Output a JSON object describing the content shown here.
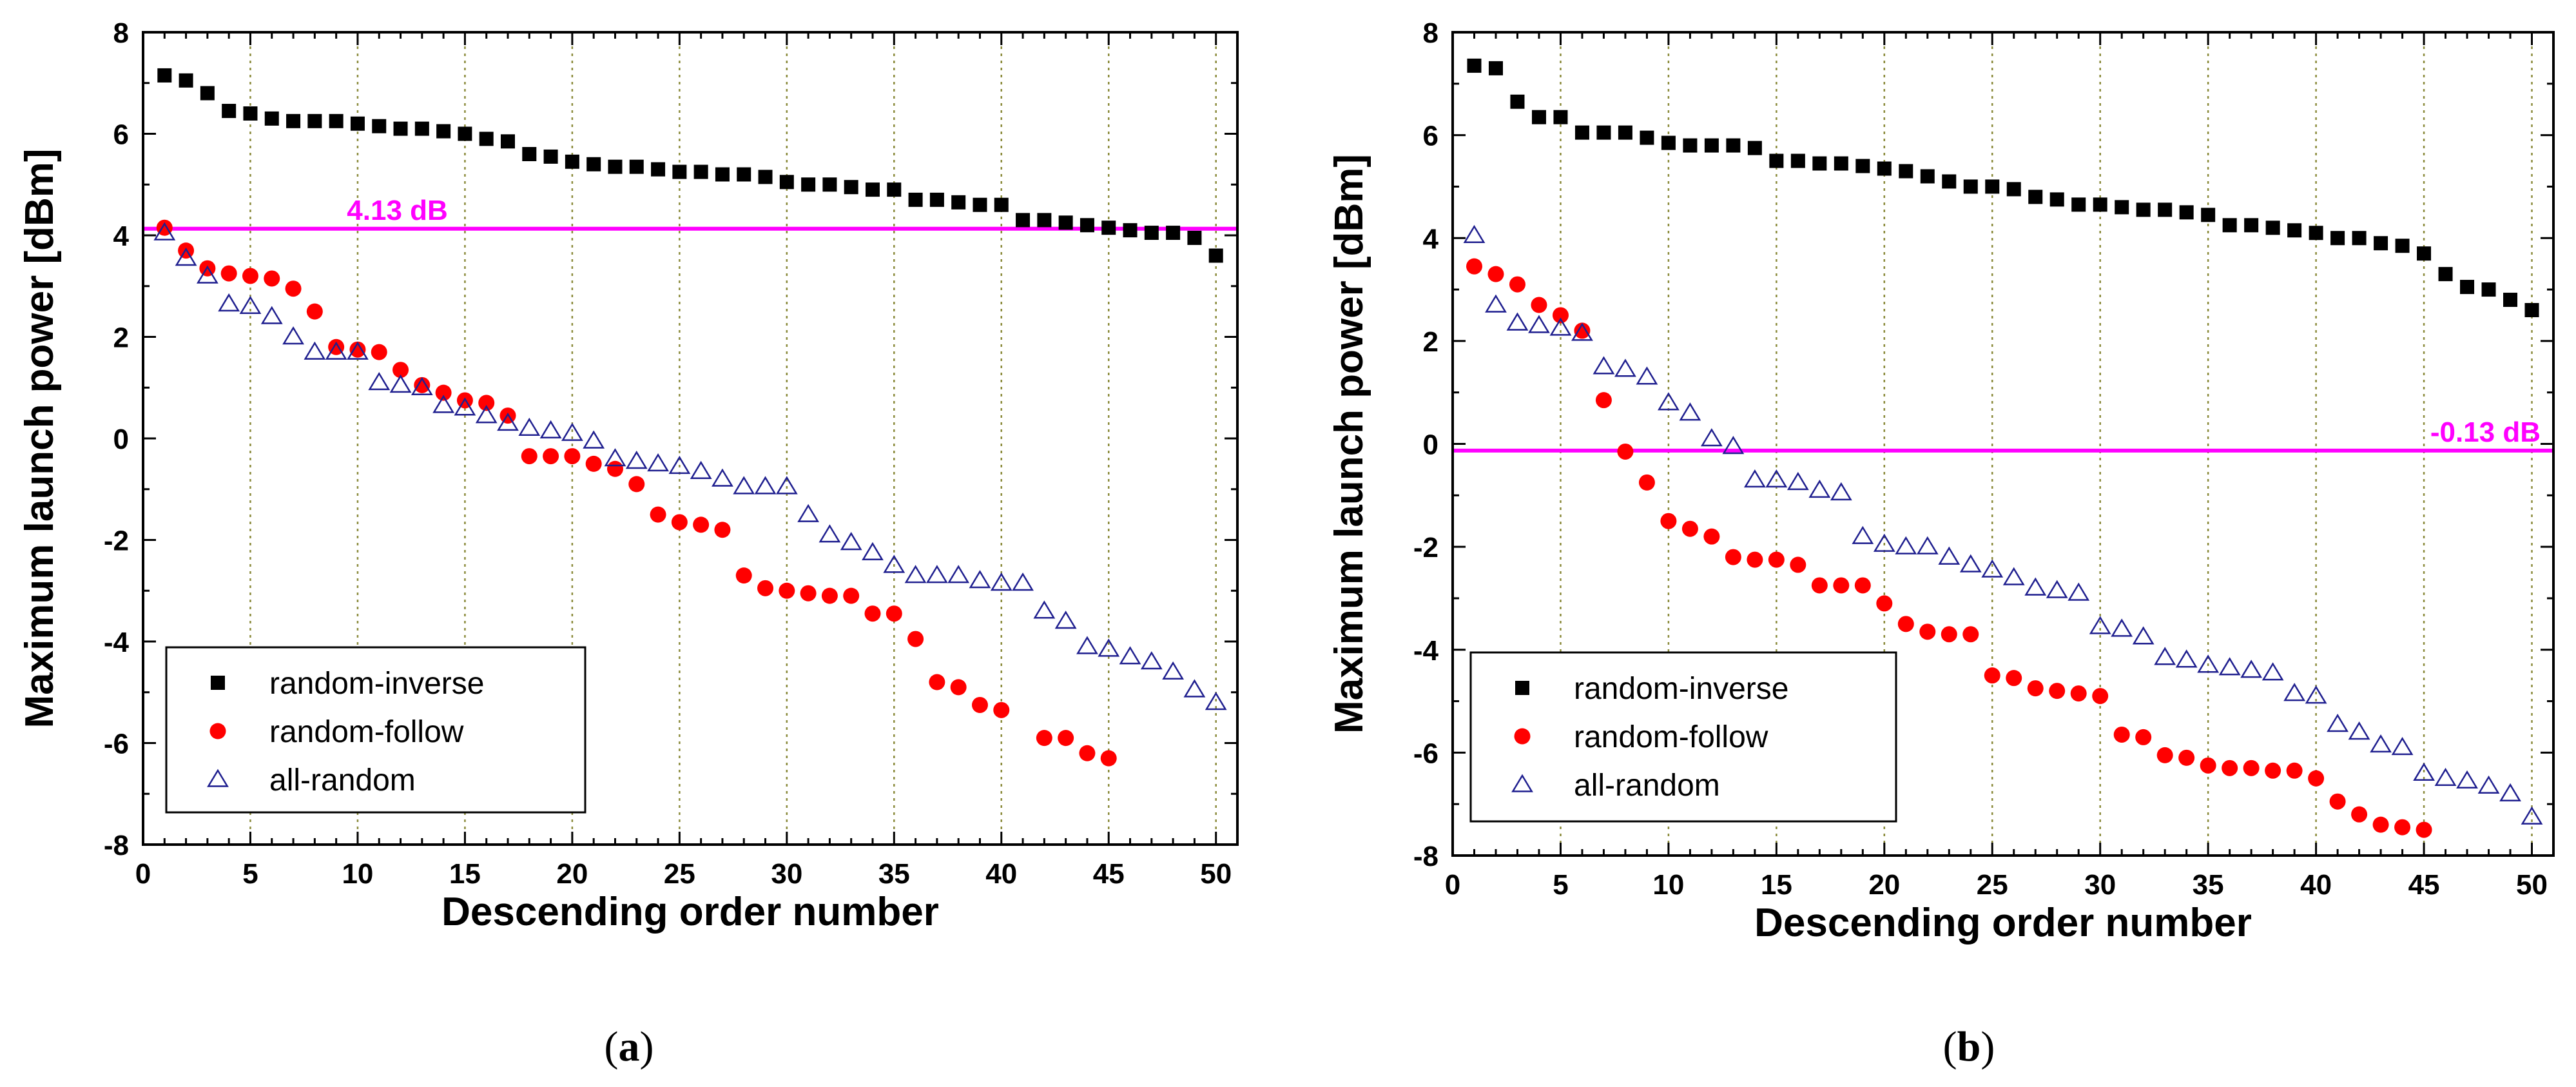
{
  "chart_data": [
    {
      "type": "scatter",
      "id": "a",
      "caption": "(a)",
      "caption_letter": "a",
      "xlabel": "Descending order number",
      "ylabel": "Maximum launch power [dBm]",
      "xlim": [
        0,
        51
      ],
      "ylim": [
        -8,
        8
      ],
      "xticks": [
        0,
        5,
        10,
        15,
        20,
        25,
        30,
        35,
        40,
        45,
        50
      ],
      "yticks": [
        -8,
        -6,
        -4,
        -2,
        0,
        2,
        4,
        6,
        8
      ],
      "grid": "vertical dotted at each x tick",
      "legend_position": "bottom-left",
      "reference_line": {
        "y": 4.13,
        "label": "4.13 dB",
        "color": "#ff00ff"
      },
      "series": [
        {
          "name": "random-inverse",
          "marker": "square",
          "color": "#000000",
          "values": [
            7.15,
            7.05,
            6.8,
            6.45,
            6.4,
            6.3,
            6.25,
            6.25,
            6.25,
            6.2,
            6.15,
            6.1,
            6.1,
            6.05,
            6.0,
            5.9,
            5.85,
            5.6,
            5.55,
            5.45,
            5.4,
            5.35,
            5.35,
            5.3,
            5.25,
            5.25,
            5.2,
            5.2,
            5.15,
            5.05,
            5.0,
            5.0,
            4.95,
            4.9,
            4.9,
            4.7,
            4.7,
            4.65,
            4.6,
            4.6,
            4.3,
            4.3,
            4.25,
            4.2,
            4.15,
            4.1,
            4.05,
            4.05,
            3.95,
            3.6
          ]
        },
        {
          "name": "random-follow",
          "marker": "circle",
          "color": "#ff0000",
          "values": [
            4.15,
            3.7,
            3.35,
            3.25,
            3.2,
            3.15,
            2.95,
            2.5,
            1.8,
            1.75,
            1.7,
            1.35,
            1.05,
            0.9,
            0.75,
            0.7,
            0.45,
            -0.35,
            -0.35,
            -0.35,
            -0.5,
            -0.6,
            -0.9,
            -1.5,
            -1.65,
            -1.7,
            -1.8,
            -2.7,
            -2.95,
            -3.0,
            -3.05,
            -3.1,
            -3.1,
            -3.45,
            -3.45,
            -3.95,
            -4.8,
            -4.9,
            -5.25,
            -5.35,
            null,
            -5.9,
            -5.9,
            -6.2,
            -6.3
          ]
        },
        {
          "name": "all-random",
          "marker": "triangle",
          "color": "#1f1f8f",
          "values": [
            4.05,
            3.55,
            3.2,
            2.65,
            2.6,
            2.4,
            2.0,
            1.7,
            1.7,
            1.7,
            1.1,
            1.05,
            1.0,
            0.65,
            0.6,
            0.45,
            0.3,
            0.2,
            0.15,
            0.1,
            -0.05,
            -0.4,
            -0.45,
            -0.5,
            -0.55,
            -0.65,
            -0.8,
            -0.95,
            -0.95,
            -0.95,
            -1.5,
            -1.9,
            -2.05,
            -2.25,
            -2.5,
            -2.7,
            -2.7,
            -2.7,
            -2.8,
            -2.85,
            -2.85,
            -3.4,
            -3.6,
            -4.1,
            -4.15,
            -4.3,
            -4.4,
            -4.6,
            -4.95,
            -5.2
          ]
        }
      ]
    },
    {
      "type": "scatter",
      "id": "b",
      "caption": "(b)",
      "caption_letter": "b",
      "xlabel": "Descending order number",
      "ylabel": "Maximum launch power [dBm]",
      "xlim": [
        0,
        51
      ],
      "ylim": [
        -8,
        8
      ],
      "xticks": [
        0,
        5,
        10,
        15,
        20,
        25,
        30,
        35,
        40,
        45,
        50
      ],
      "yticks": [
        -8,
        -6,
        -4,
        -2,
        0,
        2,
        4,
        6,
        8
      ],
      "grid": "vertical dotted at each x tick",
      "legend_position": "bottom-left",
      "reference_line": {
        "y": -0.13,
        "label": "-0.13 dB",
        "color": "#ff00ff"
      },
      "series": [
        {
          "name": "random-inverse",
          "marker": "square",
          "color": "#000000",
          "values": [
            7.35,
            7.3,
            6.65,
            6.35,
            6.35,
            6.05,
            6.05,
            6.05,
            5.95,
            5.85,
            5.8,
            5.8,
            5.8,
            5.75,
            5.5,
            5.5,
            5.45,
            5.45,
            5.4,
            5.35,
            5.3,
            5.2,
            5.1,
            5.0,
            5.0,
            4.95,
            4.8,
            4.75,
            4.65,
            4.65,
            4.6,
            4.55,
            4.55,
            4.5,
            4.45,
            4.25,
            4.25,
            4.2,
            4.15,
            4.1,
            4.0,
            4.0,
            3.9,
            3.85,
            3.7,
            3.3,
            3.05,
            3.0,
            2.8,
            2.6
          ]
        },
        {
          "name": "random-follow",
          "marker": "circle",
          "color": "#ff0000",
          "values": [
            3.45,
            3.3,
            3.1,
            2.7,
            2.5,
            2.2,
            0.85,
            -0.15,
            -0.75,
            -1.5,
            -1.65,
            -1.8,
            -2.2,
            -2.25,
            -2.25,
            -2.35,
            -2.75,
            -2.75,
            -2.75,
            -3.1,
            -3.5,
            -3.65,
            -3.7,
            -3.7,
            -4.5,
            -4.55,
            -4.75,
            -4.8,
            -4.85,
            -4.9,
            -5.65,
            -5.7,
            -6.05,
            -6.1,
            -6.25,
            -6.3,
            -6.3,
            -6.35,
            -6.35,
            -6.5,
            -6.95,
            -7.2,
            -7.4,
            -7.45,
            -7.5
          ]
        },
        {
          "name": "all-random",
          "marker": "triangle",
          "color": "#1f1f8f",
          "values": [
            4.05,
            2.7,
            2.35,
            2.3,
            2.25,
            2.15,
            1.5,
            1.45,
            1.3,
            0.8,
            0.6,
            0.1,
            -0.05,
            -0.7,
            -0.7,
            -0.75,
            -0.9,
            -0.95,
            -1.8,
            -1.95,
            -2.0,
            -2.0,
            -2.2,
            -2.35,
            -2.45,
            -2.6,
            -2.8,
            -2.85,
            -2.9,
            -3.55,
            -3.6,
            -3.75,
            -4.15,
            -4.2,
            -4.3,
            -4.35,
            -4.4,
            -4.45,
            -4.85,
            -4.9,
            -5.45,
            -5.6,
            -5.85,
            -5.9,
            -6.4,
            -6.5,
            -6.55,
            -6.65,
            -6.8,
            -7.25
          ]
        }
      ]
    }
  ]
}
